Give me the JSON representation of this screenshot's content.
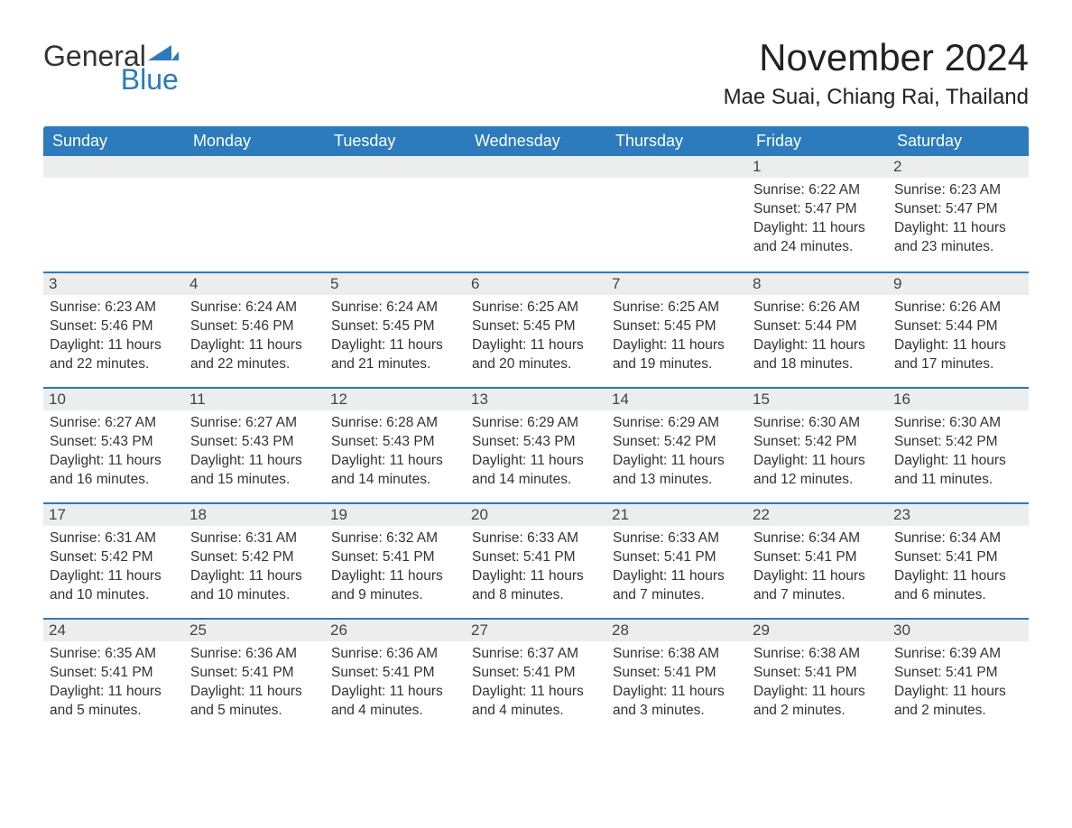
{
  "brand": {
    "word1": "General",
    "word2": "Blue",
    "accent_color": "#2b7bbd"
  },
  "title": "November 2024",
  "location": "Mae Suai, Chiang Rai, Thailand",
  "colors": {
    "header_bg": "#2b7bbd",
    "header_text": "#ffffff",
    "daynum_bg": "#eceded",
    "cell_border": "#2b7bbd",
    "text": "#333333",
    "background": "#ffffff"
  },
  "typography": {
    "title_fontsize": 42,
    "location_fontsize": 24,
    "dayhead_fontsize": 18,
    "daynum_fontsize": 17,
    "detail_fontsize": 15.5
  },
  "day_headers": [
    "Sunday",
    "Monday",
    "Tuesday",
    "Wednesday",
    "Thursday",
    "Friday",
    "Saturday"
  ],
  "weeks": [
    [
      null,
      null,
      null,
      null,
      null,
      {
        "n": "1",
        "sunrise": "Sunrise: 6:22 AM",
        "sunset": "Sunset: 5:47 PM",
        "daylight": "Daylight: 11 hours and 24 minutes."
      },
      {
        "n": "2",
        "sunrise": "Sunrise: 6:23 AM",
        "sunset": "Sunset: 5:47 PM",
        "daylight": "Daylight: 11 hours and 23 minutes."
      }
    ],
    [
      {
        "n": "3",
        "sunrise": "Sunrise: 6:23 AM",
        "sunset": "Sunset: 5:46 PM",
        "daylight": "Daylight: 11 hours and 22 minutes."
      },
      {
        "n": "4",
        "sunrise": "Sunrise: 6:24 AM",
        "sunset": "Sunset: 5:46 PM",
        "daylight": "Daylight: 11 hours and 22 minutes."
      },
      {
        "n": "5",
        "sunrise": "Sunrise: 6:24 AM",
        "sunset": "Sunset: 5:45 PM",
        "daylight": "Daylight: 11 hours and 21 minutes."
      },
      {
        "n": "6",
        "sunrise": "Sunrise: 6:25 AM",
        "sunset": "Sunset: 5:45 PM",
        "daylight": "Daylight: 11 hours and 20 minutes."
      },
      {
        "n": "7",
        "sunrise": "Sunrise: 6:25 AM",
        "sunset": "Sunset: 5:45 PM",
        "daylight": "Daylight: 11 hours and 19 minutes."
      },
      {
        "n": "8",
        "sunrise": "Sunrise: 6:26 AM",
        "sunset": "Sunset: 5:44 PM",
        "daylight": "Daylight: 11 hours and 18 minutes."
      },
      {
        "n": "9",
        "sunrise": "Sunrise: 6:26 AM",
        "sunset": "Sunset: 5:44 PM",
        "daylight": "Daylight: 11 hours and 17 minutes."
      }
    ],
    [
      {
        "n": "10",
        "sunrise": "Sunrise: 6:27 AM",
        "sunset": "Sunset: 5:43 PM",
        "daylight": "Daylight: 11 hours and 16 minutes."
      },
      {
        "n": "11",
        "sunrise": "Sunrise: 6:27 AM",
        "sunset": "Sunset: 5:43 PM",
        "daylight": "Daylight: 11 hours and 15 minutes."
      },
      {
        "n": "12",
        "sunrise": "Sunrise: 6:28 AM",
        "sunset": "Sunset: 5:43 PM",
        "daylight": "Daylight: 11 hours and 14 minutes."
      },
      {
        "n": "13",
        "sunrise": "Sunrise: 6:29 AM",
        "sunset": "Sunset: 5:43 PM",
        "daylight": "Daylight: 11 hours and 14 minutes."
      },
      {
        "n": "14",
        "sunrise": "Sunrise: 6:29 AM",
        "sunset": "Sunset: 5:42 PM",
        "daylight": "Daylight: 11 hours and 13 minutes."
      },
      {
        "n": "15",
        "sunrise": "Sunrise: 6:30 AM",
        "sunset": "Sunset: 5:42 PM",
        "daylight": "Daylight: 11 hours and 12 minutes."
      },
      {
        "n": "16",
        "sunrise": "Sunrise: 6:30 AM",
        "sunset": "Sunset: 5:42 PM",
        "daylight": "Daylight: 11 hours and 11 minutes."
      }
    ],
    [
      {
        "n": "17",
        "sunrise": "Sunrise: 6:31 AM",
        "sunset": "Sunset: 5:42 PM",
        "daylight": "Daylight: 11 hours and 10 minutes."
      },
      {
        "n": "18",
        "sunrise": "Sunrise: 6:31 AM",
        "sunset": "Sunset: 5:42 PM",
        "daylight": "Daylight: 11 hours and 10 minutes."
      },
      {
        "n": "19",
        "sunrise": "Sunrise: 6:32 AM",
        "sunset": "Sunset: 5:41 PM",
        "daylight": "Daylight: 11 hours and 9 minutes."
      },
      {
        "n": "20",
        "sunrise": "Sunrise: 6:33 AM",
        "sunset": "Sunset: 5:41 PM",
        "daylight": "Daylight: 11 hours and 8 minutes."
      },
      {
        "n": "21",
        "sunrise": "Sunrise: 6:33 AM",
        "sunset": "Sunset: 5:41 PM",
        "daylight": "Daylight: 11 hours and 7 minutes."
      },
      {
        "n": "22",
        "sunrise": "Sunrise: 6:34 AM",
        "sunset": "Sunset: 5:41 PM",
        "daylight": "Daylight: 11 hours and 7 minutes."
      },
      {
        "n": "23",
        "sunrise": "Sunrise: 6:34 AM",
        "sunset": "Sunset: 5:41 PM",
        "daylight": "Daylight: 11 hours and 6 minutes."
      }
    ],
    [
      {
        "n": "24",
        "sunrise": "Sunrise: 6:35 AM",
        "sunset": "Sunset: 5:41 PM",
        "daylight": "Daylight: 11 hours and 5 minutes."
      },
      {
        "n": "25",
        "sunrise": "Sunrise: 6:36 AM",
        "sunset": "Sunset: 5:41 PM",
        "daylight": "Daylight: 11 hours and 5 minutes."
      },
      {
        "n": "26",
        "sunrise": "Sunrise: 6:36 AM",
        "sunset": "Sunset: 5:41 PM",
        "daylight": "Daylight: 11 hours and 4 minutes."
      },
      {
        "n": "27",
        "sunrise": "Sunrise: 6:37 AM",
        "sunset": "Sunset: 5:41 PM",
        "daylight": "Daylight: 11 hours and 4 minutes."
      },
      {
        "n": "28",
        "sunrise": "Sunrise: 6:38 AM",
        "sunset": "Sunset: 5:41 PM",
        "daylight": "Daylight: 11 hours and 3 minutes."
      },
      {
        "n": "29",
        "sunrise": "Sunrise: 6:38 AM",
        "sunset": "Sunset: 5:41 PM",
        "daylight": "Daylight: 11 hours and 2 minutes."
      },
      {
        "n": "30",
        "sunrise": "Sunrise: 6:39 AM",
        "sunset": "Sunset: 5:41 PM",
        "daylight": "Daylight: 11 hours and 2 minutes."
      }
    ]
  ]
}
